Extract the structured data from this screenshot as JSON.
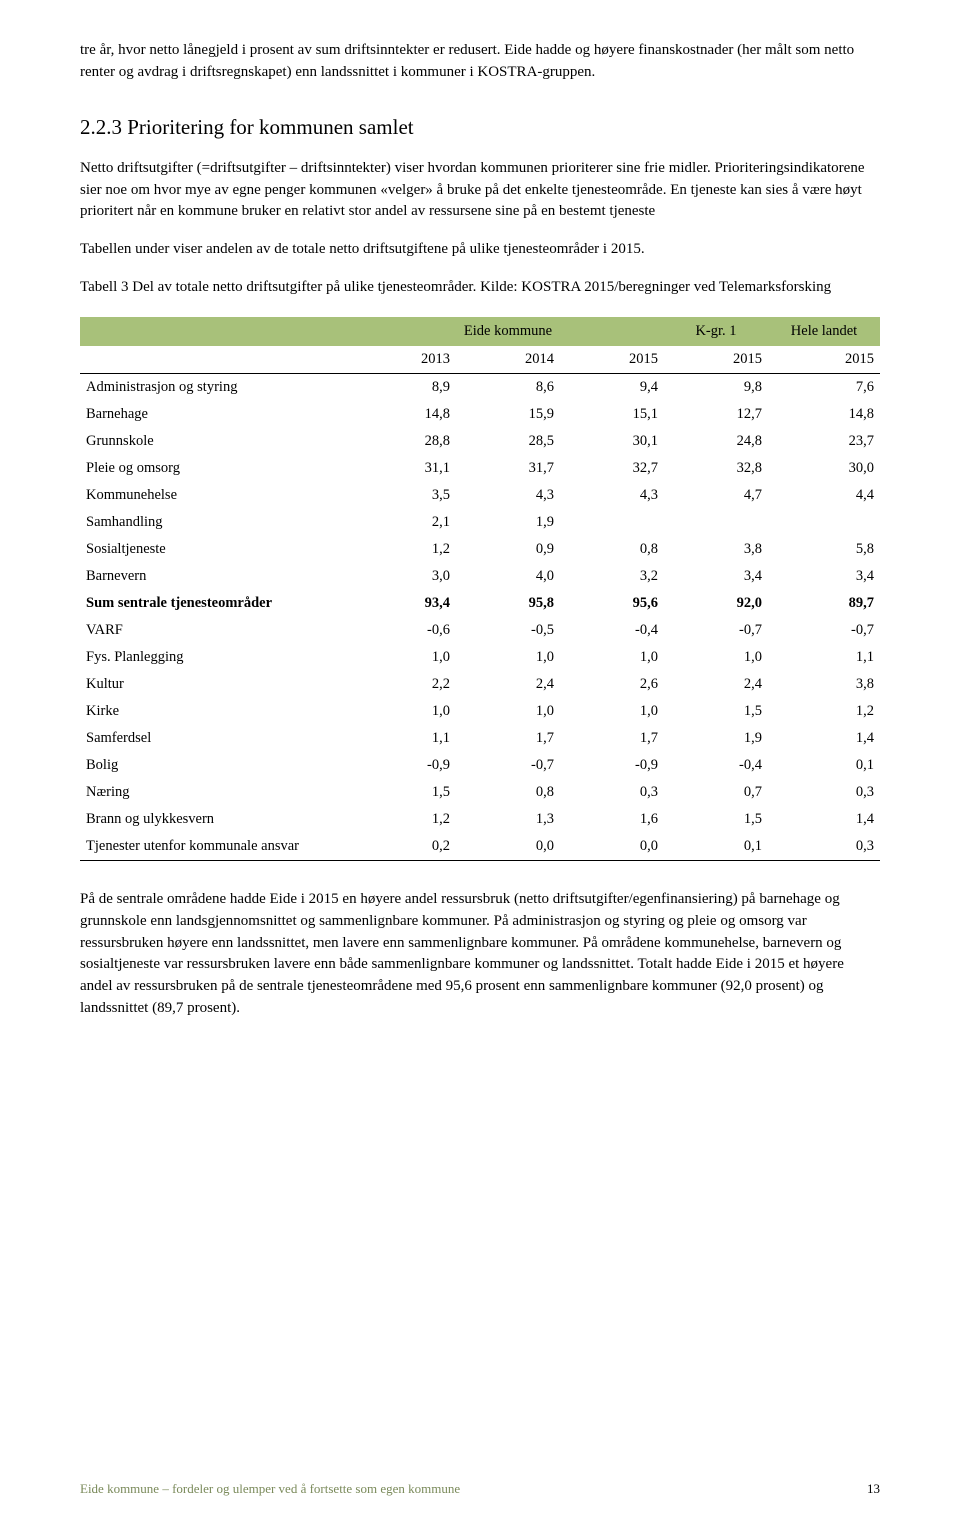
{
  "intro_para": "tre år, hvor netto lånegjeld i prosent av sum driftsinntekter er redusert. Eide hadde og høyere finanskostnader (her målt som netto renter og avdrag i driftsregnskapet) enn landssnittet i kommuner i KOSTRA-gruppen.",
  "heading": "2.2.3 Prioritering for kommunen samlet",
  "para1": "Netto driftsutgifter (=driftsutgifter – driftsinntekter) viser hvordan kommunen prioriterer sine frie midler. Prioriteringsindikatorene sier noe om hvor mye av egne penger kommunen «velger» å bruke på det enkelte tjenesteområde. En tjeneste kan sies å være høyt prioritert når en kommune bruker en relativt stor andel av ressursene sine på en bestemt tjeneste",
  "para2": "Tabellen under viser andelen av de totale netto driftsutgiftene på ulike tjenesteområder i 2015.",
  "caption": "Tabell 3 Del av totale netto driftsutgifter på ulike tjenesteområder. Kilde: KOSTRA 2015/beregninger ved Telemarksforsking",
  "table": {
    "header_bg": "#a8c17a",
    "group_headers": [
      "",
      "Eide kommune",
      "K-gr. 1",
      "Hele landet"
    ],
    "year_headers": [
      "",
      "2013",
      "2014",
      "2015",
      "2015",
      "2015"
    ],
    "rows": [
      {
        "label": "Administrasjon og styring",
        "vals": [
          "8,9",
          "8,6",
          "9,4",
          "9,8",
          "7,6"
        ]
      },
      {
        "label": "Barnehage",
        "vals": [
          "14,8",
          "15,9",
          "15,1",
          "12,7",
          "14,8"
        ]
      },
      {
        "label": "Grunnskole",
        "vals": [
          "28,8",
          "28,5",
          "30,1",
          "24,8",
          "23,7"
        ]
      },
      {
        "label": "Pleie og omsorg",
        "vals": [
          "31,1",
          "31,7",
          "32,7",
          "32,8",
          "30,0"
        ]
      },
      {
        "label": "Kommunehelse",
        "vals": [
          "3,5",
          "4,3",
          "4,3",
          "4,7",
          "4,4"
        ]
      },
      {
        "label": "Samhandling",
        "vals": [
          "2,1",
          "1,9",
          "",
          "",
          ""
        ]
      },
      {
        "label": "Sosialtjeneste",
        "vals": [
          "1,2",
          "0,9",
          "0,8",
          "3,8",
          "5,8"
        ]
      },
      {
        "label": "Barnevern",
        "vals": [
          "3,0",
          "4,0",
          "3,2",
          "3,4",
          "3,4"
        ]
      },
      {
        "label": "Sum sentrale tjenesteområder",
        "vals": [
          "93,4",
          "95,8",
          "95,6",
          "92,0",
          "89,7"
        ],
        "bold": true
      },
      {
        "label": "VARF",
        "vals": [
          "-0,6",
          "-0,5",
          "-0,4",
          "-0,7",
          "-0,7"
        ]
      },
      {
        "label": "Fys. Planlegging",
        "vals": [
          "1,0",
          "1,0",
          "1,0",
          "1,0",
          "1,1"
        ]
      },
      {
        "label": "Kultur",
        "vals": [
          "2,2",
          "2,4",
          "2,6",
          "2,4",
          "3,8"
        ]
      },
      {
        "label": "Kirke",
        "vals": [
          "1,0",
          "1,0",
          "1,0",
          "1,5",
          "1,2"
        ]
      },
      {
        "label": "Samferdsel",
        "vals": [
          "1,1",
          "1,7",
          "1,7",
          "1,9",
          "1,4"
        ]
      },
      {
        "label": "Bolig",
        "vals": [
          "-0,9",
          "-0,7",
          "-0,9",
          "-0,4",
          "0,1"
        ]
      },
      {
        "label": "Næring",
        "vals": [
          "1,5",
          "0,8",
          "0,3",
          "0,7",
          "0,3"
        ]
      },
      {
        "label": "Brann og ulykkesvern",
        "vals": [
          "1,2",
          "1,3",
          "1,6",
          "1,5",
          "1,4"
        ]
      },
      {
        "label": "Tjenester utenfor kommunale ansvar",
        "vals": [
          "0,2",
          "0,0",
          "0,0",
          "0,1",
          "0,3"
        ]
      }
    ],
    "col_widths": [
      "34%",
      "13%",
      "13%",
      "13%",
      "13%",
      "14%"
    ]
  },
  "para3": "På de sentrale områdene hadde Eide i 2015 en høyere andel ressursbruk (netto driftsutgifter/egenfinansiering) på barnehage og grunnskole enn landsgjennomsnittet og sammenlignbare kommuner. På administrasjon og styring og pleie og omsorg var ressursbruken høyere enn landssnittet, men lavere enn sammenlignbare kommuner. På områdene kommunehelse, barnevern og sosialtjeneste var ressursbruken lavere enn både sammenlignbare kommuner og landssnittet. Totalt hadde Eide i 2015 et høyere andel av ressursbruken på de sentrale tjenesteområdene med 95,6 prosent enn sammenlignbare kommuner (92,0 prosent) og landssnittet (89,7 prosent).",
  "footer_text": "Eide kommune – fordeler og ulemper ved å fortsette som egen kommune",
  "page_number": "13"
}
